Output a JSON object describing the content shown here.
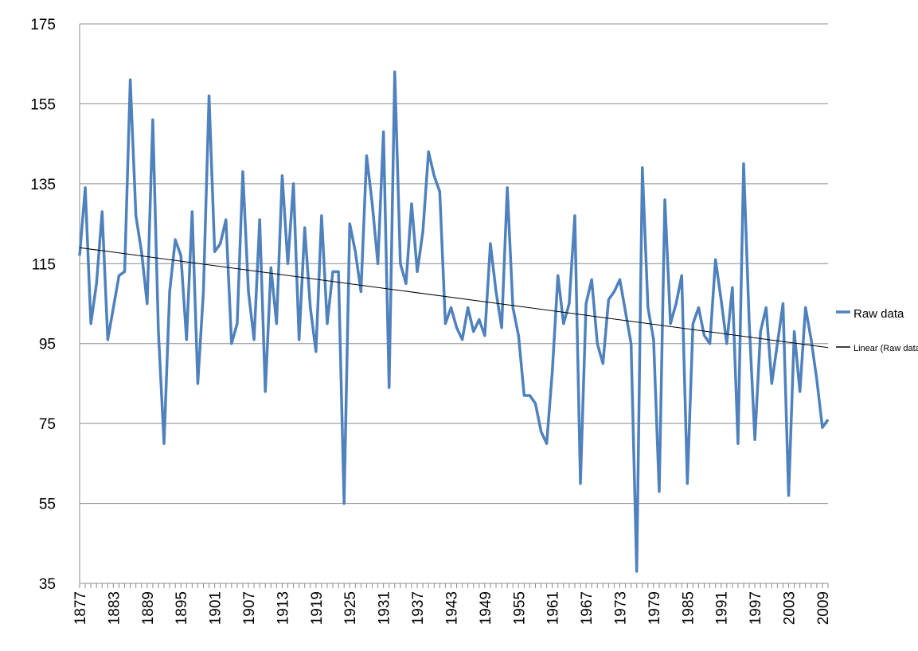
{
  "chart_data": {
    "type": "line",
    "categories": [
      1877,
      null,
      null,
      null,
      null,
      null,
      1883,
      null,
      null,
      null,
      null,
      null,
      1889,
      null,
      null,
      null,
      null,
      null,
      1895,
      null,
      null,
      null,
      null,
      null,
      1901,
      null,
      null,
      null,
      null,
      null,
      1907,
      null,
      null,
      null,
      null,
      null,
      1913,
      null,
      null,
      null,
      null,
      null,
      1919,
      null,
      null,
      null,
      null,
      null,
      1925,
      null,
      null,
      null,
      null,
      null,
      1931,
      null,
      null,
      null,
      null,
      null,
      1937,
      null,
      null,
      null,
      null,
      null,
      1943,
      null,
      null,
      null,
      null,
      null,
      1949,
      null,
      null,
      null,
      null,
      null,
      1955,
      null,
      null,
      null,
      null,
      null,
      1961,
      null,
      null,
      null,
      null,
      null,
      1967,
      null,
      null,
      null,
      null,
      null,
      1973,
      null,
      null,
      null,
      null,
      null,
      1979,
      null,
      null,
      null,
      null,
      null,
      1985,
      null,
      null,
      null,
      null,
      null,
      1991,
      null,
      null,
      null,
      null,
      null,
      1997,
      null,
      null,
      null,
      null,
      null,
      2003,
      null,
      null,
      null,
      null,
      null,
      2009,
      null
    ],
    "series": [
      {
        "name": "Raw data",
        "color": "#4f81bd",
        "values": [
          117,
          134,
          100,
          110,
          128,
          96,
          104,
          112,
          113,
          161,
          127,
          118,
          105,
          151,
          98,
          70,
          108,
          121,
          117,
          96,
          128,
          85,
          108,
          157,
          118,
          120,
          126,
          95,
          100,
          138,
          108,
          96,
          126,
          83,
          114,
          100,
          137,
          115,
          135,
          96,
          124,
          104,
          93,
          127,
          100,
          113,
          113,
          55,
          125,
          118,
          108,
          142,
          130,
          115,
          148,
          84,
          163,
          115,
          110,
          130,
          113,
          123,
          143,
          137,
          133,
          100,
          104,
          99,
          96,
          104,
          98,
          101,
          97,
          120,
          108,
          99,
          134,
          104,
          97,
          82,
          82,
          80,
          73,
          70,
          88,
          112,
          100,
          105,
          127,
          60,
          105,
          111,
          95,
          90,
          106,
          108,
          111,
          103,
          95,
          38,
          139,
          104,
          96,
          58,
          131,
          100,
          105,
          112,
          60,
          100,
          104,
          97,
          95,
          116,
          106,
          95,
          109,
          70,
          140,
          100,
          71,
          98,
          104,
          85,
          95,
          105,
          57,
          98,
          83,
          104,
          96,
          86,
          74,
          76
        ]
      }
    ],
    "trend": {
      "name": "Linear (Raw data)",
      "color": "#000000",
      "values": [
        119,
        94
      ]
    },
    "ylim": [
      35,
      175
    ],
    "yticks": [
      35,
      55,
      75,
      95,
      115,
      135,
      155,
      175
    ],
    "grid": true
  }
}
